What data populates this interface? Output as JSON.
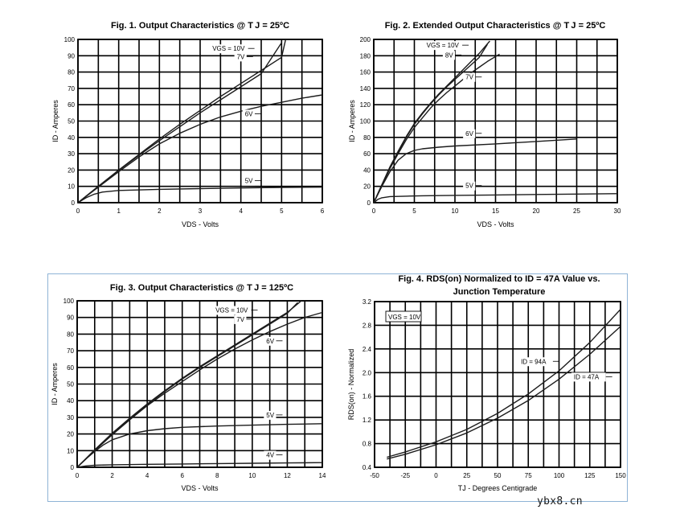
{
  "watermark": "ybx8.cn",
  "chart_data": [
    {
      "type": "line",
      "id": "fig1",
      "title": "Fig. 1. Output Characteristics @ T J = 25ºC",
      "xlabel": "VDS - Volts",
      "ylabel": "ID - Amperes",
      "xlim": [
        0,
        6
      ],
      "ylim": [
        0,
        100
      ],
      "xticks": [
        0,
        1,
        2,
        3,
        4,
        5,
        6
      ],
      "yticks": [
        0,
        10,
        20,
        30,
        40,
        50,
        60,
        70,
        80,
        90,
        100
      ],
      "xgrid": [
        0,
        0.5,
        1,
        1.5,
        2,
        2.5,
        3,
        3.5,
        4,
        4.5,
        5,
        5.5,
        6
      ],
      "ygrid": [
        0,
        10,
        20,
        30,
        40,
        50,
        60,
        70,
        80,
        90,
        100
      ],
      "series": [
        {
          "name": "VGS = 10V",
          "x": [
            0,
            0.5,
            1,
            1.5,
            2,
            2.5,
            3,
            3.5,
            4,
            4.5,
            5,
            5.1
          ],
          "y": [
            0,
            10,
            20,
            29.5,
            39,
            48,
            56.5,
            65,
            73,
            81,
            89,
            100
          ]
        },
        {
          "name": "7V",
          "x": [
            0,
            0.5,
            1,
            1.5,
            2,
            2.5,
            3,
            3.5,
            4,
            4.5,
            5
          ],
          "y": [
            0,
            10,
            19.8,
            29,
            38,
            46.5,
            55,
            63,
            71,
            79,
            98
          ]
        },
        {
          "name": "6V",
          "x": [
            0,
            0.5,
            1,
            1.5,
            2,
            2.5,
            3,
            3.5,
            4,
            4.5,
            5,
            5.5,
            6
          ],
          "y": [
            0,
            9.5,
            19,
            28,
            36,
            42.5,
            48,
            52.5,
            56,
            59,
            61.5,
            64,
            66
          ]
        },
        {
          "name": "5V",
          "x": [
            0,
            0.2,
            0.4,
            0.6,
            1,
            2,
            3,
            4,
            5,
            6
          ],
          "y": [
            0,
            3,
            5.2,
            6.5,
            7.5,
            8.2,
            8.6,
            9,
            9.3,
            9.5
          ]
        }
      ],
      "labels": [
        {
          "text": "VGS = 10V",
          "x": 3.3,
          "y": 93
        },
        {
          "text": "7V",
          "x": 3.9,
          "y": 88
        },
        {
          "text": "6V",
          "x": 4.1,
          "y": 53
        },
        {
          "text": "5V",
          "x": 4.1,
          "y": 12
        }
      ]
    },
    {
      "type": "line",
      "id": "fig2",
      "title": "Fig. 2. Extended Output Characteristics @ T J = 25ºC",
      "xlabel": "VDS - Volts",
      "ylabel": "ID - Amperes",
      "xlim": [
        0,
        30
      ],
      "ylim": [
        0,
        200
      ],
      "xticks": [
        0,
        5,
        10,
        15,
        20,
        25,
        30
      ],
      "yticks": [
        0,
        20,
        40,
        60,
        80,
        100,
        120,
        140,
        160,
        180,
        200
      ],
      "xgrid": [
        0,
        2.5,
        5,
        7.5,
        10,
        12.5,
        15,
        17.5,
        20,
        22.5,
        25,
        27.5,
        30
      ],
      "ygrid": [
        0,
        20,
        40,
        60,
        80,
        100,
        120,
        140,
        160,
        180,
        200
      ],
      "series": [
        {
          "name": "VGS = 10V",
          "x": [
            0,
            1,
            2,
            3,
            4,
            5,
            6,
            7,
            8,
            9,
            10,
            11,
            12,
            13,
            14.3
          ],
          "y": [
            0,
            22,
            44,
            63,
            81,
            97,
            110,
            122,
            133,
            143,
            153,
            163,
            173,
            183,
            198
          ]
        },
        {
          "name": "8V",
          "x": [
            0,
            1,
            2,
            3,
            4,
            5,
            6,
            7,
            8,
            9,
            10,
            11,
            12,
            13,
            14
          ],
          "y": [
            0,
            22,
            43,
            62,
            80,
            96,
            109,
            121,
            132,
            142,
            151,
            160,
            169,
            178,
            194
          ]
        },
        {
          "name": "7V",
          "x": [
            0,
            1,
            2,
            3,
            4,
            5,
            6,
            7,
            8,
            9,
            10,
            11,
            12,
            13,
            14,
            15.5
          ],
          "y": [
            0,
            21,
            42,
            60,
            77,
            92,
            104,
            116,
            126,
            135,
            143,
            151,
            159,
            166,
            173,
            182
          ]
        },
        {
          "name": "6V",
          "x": [
            0,
            1,
            2,
            3,
            4,
            5,
            6,
            8,
            10,
            15,
            20,
            25
          ],
          "y": [
            0,
            20,
            38,
            52,
            60,
            64,
            66,
            68,
            69.5,
            72,
            75,
            78
          ]
        },
        {
          "name": "5V",
          "x": [
            0,
            0.5,
            1,
            2,
            4,
            6,
            10,
            15,
            20,
            25,
            30
          ],
          "y": [
            0,
            4,
            6,
            7.5,
            8,
            8.5,
            9,
            9.5,
            10,
            10.5,
            11
          ]
        }
      ],
      "labels": [
        {
          "text": "VGS = 10V",
          "x": 6.5,
          "y": 190
        },
        {
          "text": "8V",
          "x": 8.8,
          "y": 178
        },
        {
          "text": "7V",
          "x": 11.3,
          "y": 151
        },
        {
          "text": "6V",
          "x": 11.3,
          "y": 82
        },
        {
          "text": "5V",
          "x": 11.3,
          "y": 18
        }
      ]
    },
    {
      "type": "line",
      "id": "fig3",
      "title": "Fig. 3. Output Characteristics @ T J = 125ºC",
      "xlabel": "VDS - Volts",
      "ylabel": "ID - Amperes",
      "xlim": [
        0,
        14
      ],
      "ylim": [
        0,
        100
      ],
      "xticks": [
        0,
        2,
        4,
        6,
        8,
        10,
        12,
        14
      ],
      "yticks": [
        0,
        10,
        20,
        30,
        40,
        50,
        60,
        70,
        80,
        90,
        100
      ],
      "xgrid": [
        0,
        1,
        2,
        3,
        4,
        5,
        6,
        7,
        8,
        9,
        10,
        11,
        12,
        13,
        14
      ],
      "ygrid": [
        0,
        10,
        20,
        30,
        40,
        50,
        60,
        70,
        80,
        90,
        100
      ],
      "series": [
        {
          "name": "VGS = 10V",
          "x": [
            0,
            1,
            2,
            3,
            4,
            5,
            6,
            7,
            8,
            9,
            10,
            11,
            12,
            12.8
          ],
          "y": [
            0,
            10.5,
            20.5,
            29.5,
            38,
            46,
            53.5,
            60.5,
            67,
            73.5,
            80,
            86.5,
            93,
            100
          ]
        },
        {
          "name": "7V",
          "x": [
            0,
            1,
            2,
            3,
            4,
            5,
            6,
            7,
            8,
            9,
            10,
            11,
            12,
            12.6
          ],
          "y": [
            0,
            10,
            20,
            29,
            37.5,
            45.5,
            53,
            60,
            66.5,
            73,
            79.5,
            86,
            92.5,
            99
          ]
        },
        {
          "name": "6V",
          "x": [
            0,
            1,
            2,
            3,
            4,
            5,
            6,
            7,
            8,
            9,
            10,
            11,
            12,
            13,
            14
          ],
          "y": [
            0,
            10,
            19.5,
            28.5,
            37,
            44.5,
            51.5,
            58.5,
            65,
            71,
            76.5,
            81.5,
            86,
            90,
            93
          ]
        },
        {
          "name": "5V",
          "x": [
            0,
            0.5,
            1,
            1.5,
            2,
            3,
            4,
            5,
            6,
            8,
            10,
            12,
            14
          ],
          "y": [
            0,
            5,
            9.5,
            13.5,
            16.5,
            20,
            22,
            23.2,
            24,
            24.8,
            25.3,
            25.8,
            26.2
          ]
        },
        {
          "name": "4V",
          "x": [
            0,
            0.5,
            1,
            2,
            4,
            6,
            8,
            10,
            12,
            14
          ],
          "y": [
            0,
            0.8,
            1.2,
            1.5,
            1.8,
            2,
            2.2,
            2.4,
            2.6,
            2.8
          ]
        }
      ],
      "labels": [
        {
          "text": "VGS = 10V",
          "x": 7.9,
          "y": 93
        },
        {
          "text": "7V",
          "x": 9.1,
          "y": 87.5
        },
        {
          "text": "6V",
          "x": 10.8,
          "y": 74.5
        },
        {
          "text": "5V",
          "x": 10.8,
          "y": 30
        },
        {
          "text": "4V",
          "x": 10.8,
          "y": 6
        }
      ]
    },
    {
      "type": "line",
      "id": "fig4",
      "title_line1": "Fig. 4. RDS(on) Normalized to ID = 47A Value vs.",
      "title_line2": "Junction Temperature",
      "xlabel": "TJ - Degrees Centigrade",
      "ylabel": "RDS(on) - Normalized",
      "xlim": [
        -50,
        150
      ],
      "ylim": [
        0.4,
        3.2
      ],
      "xticks": [
        -50,
        -25,
        0,
        25,
        50,
        75,
        100,
        125,
        150
      ],
      "yticks": [
        0.4,
        0.8,
        1.2,
        1.6,
        2.0,
        2.4,
        2.8,
        3.2
      ],
      "xtick_labels": [
        "-50",
        "-25",
        "0",
        "25",
        "50",
        "75",
        "100",
        "125",
        "150"
      ],
      "ytick_labels": [
        "0.4",
        "0.8",
        "1.2",
        "1.6",
        "2.0",
        "2.4",
        "2.8",
        "3.2"
      ],
      "xgrid": [
        -50,
        -37.5,
        -25,
        -12.5,
        0,
        12.5,
        25,
        37.5,
        50,
        62.5,
        75,
        87.5,
        100,
        112.5,
        125,
        137.5,
        150
      ],
      "ygrid": [
        0.4,
        0.8,
        1.2,
        1.6,
        2.0,
        2.4,
        2.8,
        3.2
      ],
      "legend_box": "VGS = 10V",
      "series": [
        {
          "name": "ID = 94A",
          "x": [
            -40,
            -25,
            0,
            25,
            50,
            75,
            100,
            125,
            150
          ],
          "y": [
            0.57,
            0.66,
            0.83,
            1.04,
            1.31,
            1.64,
            2.03,
            2.51,
            3.07
          ]
        },
        {
          "name": "ID = 47A",
          "x": [
            -40,
            -25,
            0,
            25,
            50,
            75,
            100,
            125,
            150
          ],
          "y": [
            0.54,
            0.62,
            0.78,
            0.98,
            1.23,
            1.53,
            1.89,
            2.31,
            2.78
          ]
        }
      ],
      "labels": [
        {
          "text": "ID = 94A",
          "x": 69,
          "y": 2.15
        },
        {
          "text": "ID = 47A",
          "x": 112,
          "y": 1.89
        }
      ]
    }
  ]
}
